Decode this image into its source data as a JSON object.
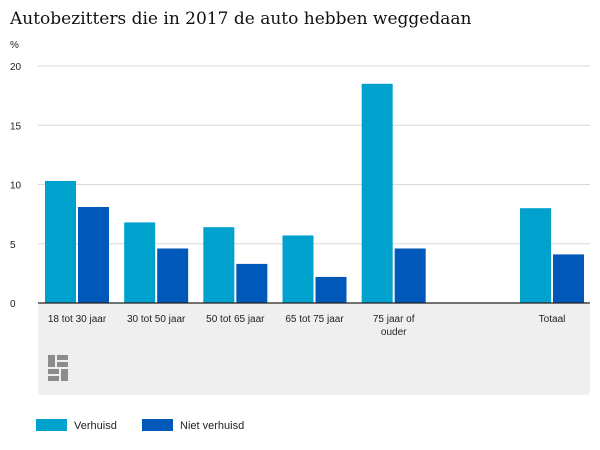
{
  "chart_data": {
    "type": "bar",
    "title": "Autobezitters die in 2017 de auto hebben weggedaan",
    "ylabel": "%",
    "xlabel": "",
    "ylim": [
      0,
      20
    ],
    "yticks": [
      "0",
      "5",
      "10",
      "15",
      "20"
    ],
    "grid": true,
    "legend_position": "bottom-left",
    "categories": [
      [
        "18 tot 30 jaar"
      ],
      [
        "30 tot 50 jaar"
      ],
      [
        "50 tot 65 jaar"
      ],
      [
        "65 tot 75 jaar"
      ],
      [
        "75 jaar of",
        "ouder"
      ],
      [
        ""
      ],
      [
        "Totaal"
      ]
    ],
    "series": [
      {
        "name": "Verhuisd",
        "color": "#00a1cd",
        "values": [
          10.3,
          6.8,
          6.4,
          5.7,
          18.5,
          null,
          8.0
        ]
      },
      {
        "name": "Niet verhuisd",
        "color": "#0058b8",
        "values": [
          8.1,
          4.6,
          3.3,
          2.2,
          4.6,
          null,
          4.1
        ]
      }
    ]
  },
  "logo": {
    "name": "cbs-logo",
    "color": "#8c8c8c"
  },
  "colors": {
    "panel": "#efefef",
    "grid": "#d9d9d9",
    "axis": "#222222"
  }
}
